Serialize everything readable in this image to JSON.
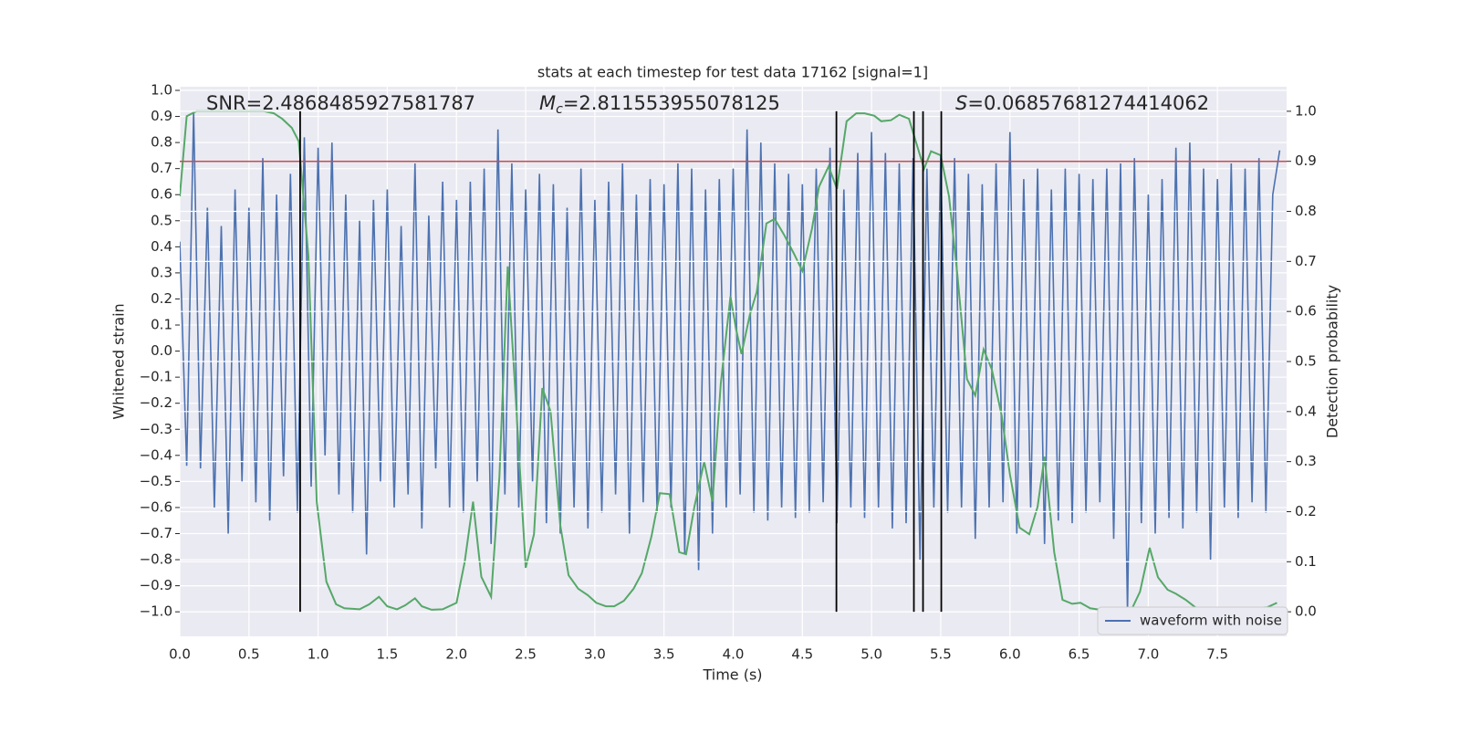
{
  "chart_data": {
    "type": "line",
    "title": "stats at each timestep for test data 17162 [signal=1]",
    "xlabel": "Time (s)",
    "ylabel": "Whitened strain",
    "y2label": "Detection probability",
    "annotations": [
      {
        "text": "SNR=2.4868485927581787"
      },
      {
        "symbol": "M",
        "subscript": "c",
        "text": "=2.811553955078125"
      },
      {
        "symbol": "S",
        "text": "=0.06857681274414062"
      }
    ],
    "xlim": [
      0,
      8
    ],
    "ylim": [
      -1.094,
      1.014
    ],
    "y2lim": [
      -0.049,
      1.049
    ],
    "xticks": [
      {
        "value": 0,
        "label": "0.0"
      },
      {
        "value": 0.5,
        "label": "0.5"
      },
      {
        "value": 1,
        "label": "1.0"
      },
      {
        "value": 1.5,
        "label": "1.5"
      },
      {
        "value": 2,
        "label": "2.0"
      },
      {
        "value": 2.5,
        "label": "2.5"
      },
      {
        "value": 3,
        "label": "3.0"
      },
      {
        "value": 3.5,
        "label": "3.5"
      },
      {
        "value": 4,
        "label": "4.0"
      },
      {
        "value": 4.5,
        "label": "4.5"
      },
      {
        "value": 5,
        "label": "5.0"
      },
      {
        "value": 5.5,
        "label": "5.5"
      },
      {
        "value": 6,
        "label": "6.0"
      },
      {
        "value": 6.5,
        "label": "6.5"
      },
      {
        "value": 7,
        "label": "7.0"
      },
      {
        "value": 7.5,
        "label": "7.5"
      }
    ],
    "yticks": [
      {
        "value": -1,
        "label": "−1.0"
      },
      {
        "value": -0.9,
        "label": "−0.9"
      },
      {
        "value": -0.8,
        "label": "−0.8"
      },
      {
        "value": -0.7,
        "label": "−0.7"
      },
      {
        "value": -0.6,
        "label": "−0.6"
      },
      {
        "value": -0.5,
        "label": "−0.5"
      },
      {
        "value": -0.4,
        "label": "−0.4"
      },
      {
        "value": -0.3,
        "label": "−0.3"
      },
      {
        "value": -0.2,
        "label": "−0.2"
      },
      {
        "value": -0.1,
        "label": "−0.1"
      },
      {
        "value": 0,
        "label": "0.0"
      },
      {
        "value": 0.1,
        "label": "0.1"
      },
      {
        "value": 0.2,
        "label": "0.2"
      },
      {
        "value": 0.3,
        "label": "0.3"
      },
      {
        "value": 0.4,
        "label": "0.4"
      },
      {
        "value": 0.5,
        "label": "0.5"
      },
      {
        "value": 0.6,
        "label": "0.6"
      },
      {
        "value": 0.7,
        "label": "0.7"
      },
      {
        "value": 0.8,
        "label": "0.8"
      },
      {
        "value": 0.9,
        "label": "0.9"
      },
      {
        "value": 1,
        "label": "1.0"
      }
    ],
    "y2ticks": [
      {
        "value": 0,
        "label": "0.0"
      },
      {
        "value": 0.1,
        "label": "0.1"
      },
      {
        "value": 0.2,
        "label": "0.2"
      },
      {
        "value": 0.3,
        "label": "0.3"
      },
      {
        "value": 0.4,
        "label": "0.4"
      },
      {
        "value": 0.5,
        "label": "0.5"
      },
      {
        "value": 0.6,
        "label": "0.6"
      },
      {
        "value": 0.7,
        "label": "0.7"
      },
      {
        "value": 0.8,
        "label": "0.8"
      },
      {
        "value": 0.9,
        "label": "0.9"
      },
      {
        "value": 1,
        "label": "1.0"
      }
    ],
    "grid": true,
    "legend": "lower right",
    "threshold": {
      "value": 0.9,
      "axis": "y2",
      "color": "#c44e52"
    },
    "vlines": {
      "x": [
        0.87,
        4.746,
        5.306,
        5.372,
        5.504
      ],
      "range": [
        0,
        1
      ],
      "axis": "y2",
      "color": "#000000"
    },
    "series": [
      {
        "name": "waveform with noise",
        "color": "#4c72b0",
        "x": [
          0,
          0.05,
          0.1,
          0.15,
          0.2,
          0.25,
          0.3,
          0.35,
          0.4,
          0.45,
          0.5,
          0.55,
          0.6,
          0.65,
          0.7,
          0.75,
          0.8,
          0.85,
          0.9,
          0.95,
          1,
          1.05,
          1.1,
          1.15,
          1.2,
          1.25,
          1.3,
          1.35,
          1.4,
          1.45,
          1.5,
          1.55,
          1.6,
          1.65,
          1.7,
          1.75,
          1.8,
          1.85,
          1.9,
          1.95,
          2,
          2.05,
          2.1,
          2.15,
          2.2,
          2.25,
          2.3,
          2.35,
          2.4,
          2.45,
          2.5,
          2.55,
          2.6,
          2.65,
          2.7,
          2.75,
          2.8,
          2.85,
          2.9,
          2.95,
          3,
          3.05,
          3.1,
          3.15,
          3.2,
          3.25,
          3.3,
          3.35,
          3.4,
          3.45,
          3.5,
          3.55,
          3.6,
          3.65,
          3.7,
          3.75,
          3.8,
          3.85,
          3.9,
          3.95,
          4,
          4.05,
          4.1,
          4.15,
          4.2,
          4.25,
          4.3,
          4.35,
          4.4,
          4.45,
          4.5,
          4.55,
          4.6,
          4.65,
          4.7,
          4.75,
          4.8,
          4.85,
          4.9,
          4.95,
          5,
          5.05,
          5.1,
          5.15,
          5.2,
          5.25,
          5.3,
          5.35,
          5.4,
          5.45,
          5.5,
          5.55,
          5.6,
          5.65,
          5.7,
          5.75,
          5.8,
          5.85,
          5.9,
          5.95,
          6,
          6.05,
          6.1,
          6.15,
          6.2,
          6.25,
          6.3,
          6.35,
          6.4,
          6.45,
          6.5,
          6.55,
          6.6,
          6.65,
          6.7,
          6.75,
          6.8,
          6.85,
          6.9,
          6.95,
          7,
          7.05,
          7.1,
          7.15,
          7.2,
          7.25,
          7.3,
          7.35,
          7.4,
          7.45,
          7.5,
          7.55,
          7.6,
          7.65,
          7.7,
          7.75,
          7.8,
          7.85,
          7.9,
          7.95
        ],
        "values": [
          0.42,
          -0.44,
          0.92,
          -0.45,
          0.55,
          -0.6,
          0.48,
          -0.7,
          0.62,
          -0.5,
          0.55,
          -0.58,
          0.74,
          -0.65,
          0.6,
          -0.48,
          0.68,
          -0.62,
          0.82,
          -0.52,
          0.78,
          -0.4,
          0.8,
          -0.55,
          0.6,
          -0.62,
          0.5,
          -0.78,
          0.58,
          -0.5,
          0.62,
          -0.6,
          0.48,
          -0.55,
          0.72,
          -0.68,
          0.52,
          -0.45,
          0.65,
          -0.6,
          0.58,
          -0.62,
          0.65,
          -0.5,
          0.7,
          -0.74,
          0.85,
          -0.55,
          0.72,
          -0.6,
          0.62,
          -0.5,
          0.68,
          -0.66,
          0.64,
          -0.7,
          0.55,
          -0.6,
          0.7,
          -0.68,
          0.58,
          -0.62,
          0.65,
          -0.55,
          0.72,
          -0.7,
          0.6,
          -0.58,
          0.66,
          -0.62,
          0.64,
          -0.6,
          0.72,
          -0.78,
          0.7,
          -0.84,
          0.62,
          -0.7,
          0.66,
          -0.6,
          0.7,
          -0.55,
          0.85,
          -0.62,
          0.8,
          -0.65,
          0.72,
          -0.6,
          0.68,
          -0.64,
          0.64,
          -0.62,
          0.7,
          -0.58,
          0.78,
          -0.66,
          0.62,
          -0.6,
          0.76,
          -0.64,
          0.84,
          -0.6,
          0.76,
          -0.68,
          0.72,
          -0.66,
          0.74,
          -0.8,
          0.7,
          -0.6,
          0.75,
          -0.62,
          0.74,
          -0.6,
          0.68,
          -0.72,
          0.64,
          -0.6,
          0.72,
          -0.58,
          0.84,
          -0.7,
          0.66,
          -0.6,
          0.7,
          -0.74,
          0.62,
          -0.65,
          0.7,
          -0.66,
          0.68,
          -0.62,
          0.66,
          -0.58,
          0.7,
          -0.72,
          0.72,
          -1.0,
          0.74,
          -0.66,
          0.6,
          -0.7,
          0.66,
          -0.64,
          0.78,
          -0.68,
          0.8,
          -0.62,
          0.7,
          -0.8,
          0.66,
          -0.6,
          0.72,
          -0.64,
          0.7,
          -0.58,
          0.74,
          -0.62,
          0.6,
          0.77
        ]
      },
      {
        "color": "#55a868",
        "axis": "y2",
        "x": [
          0,
          0.05,
          0.12,
          0.61,
          0.68,
          0.74,
          0.81,
          0.86,
          0.93,
          0.99,
          1.06,
          1.13,
          1.19,
          1.3,
          1.37,
          1.44,
          1.5,
          1.57,
          1.63,
          1.7,
          1.75,
          1.82,
          1.9,
          2.0,
          2.06,
          2.12,
          2.18,
          2.25,
          2.31,
          2.37,
          2.43,
          2.5,
          2.56,
          2.62,
          2.68,
          2.75,
          2.81,
          2.88,
          2.95,
          3.01,
          3.08,
          3.14,
          3.21,
          3.28,
          3.34,
          3.41,
          3.47,
          3.54,
          3.61,
          3.66,
          3.72,
          3.79,
          3.85,
          3.91,
          3.98,
          4.02,
          4.06,
          4.12,
          4.17,
          4.24,
          4.3,
          4.37,
          4.44,
          4.5,
          4.57,
          4.62,
          4.69,
          4.75,
          4.82,
          4.89,
          4.95,
          5.02,
          5.07,
          5.14,
          5.2,
          5.27,
          5.32,
          5.38,
          5.43,
          5.5,
          5.56,
          5.62,
          5.69,
          5.75,
          5.81,
          5.87,
          5.94,
          6.0,
          6.07,
          6.14,
          6.2,
          6.25,
          6.32,
          6.38,
          6.45,
          6.51,
          6.58,
          6.65,
          6.78,
          6.88,
          6.94,
          7.01,
          7.07,
          7.14,
          7.2,
          7.27,
          7.34,
          7.4,
          7.53,
          7.63,
          7.73,
          7.86,
          7.93
        ],
        "values": [
          0.83,
          0.99,
          1.0,
          1.0,
          0.996,
          0.985,
          0.967,
          0.94,
          0.71,
          0.22,
          0.06,
          0.015,
          0.007,
          0.005,
          0.015,
          0.03,
          0.011,
          0.005,
          0.013,
          0.027,
          0.011,
          0.004,
          0.005,
          0.018,
          0.1,
          0.22,
          0.07,
          0.03,
          0.27,
          0.69,
          0.42,
          0.088,
          0.155,
          0.447,
          0.4,
          0.173,
          0.073,
          0.046,
          0.033,
          0.018,
          0.011,
          0.011,
          0.022,
          0.046,
          0.077,
          0.151,
          0.237,
          0.235,
          0.119,
          0.115,
          0.21,
          0.3,
          0.22,
          0.456,
          0.63,
          0.566,
          0.515,
          0.593,
          0.639,
          0.776,
          0.785,
          0.752,
          0.715,
          0.681,
          0.766,
          0.849,
          0.89,
          0.845,
          0.98,
          0.996,
          0.996,
          0.991,
          0.98,
          0.982,
          0.993,
          0.985,
          0.94,
          0.885,
          0.92,
          0.912,
          0.83,
          0.675,
          0.465,
          0.432,
          0.524,
          0.484,
          0.392,
          0.274,
          0.168,
          0.155,
          0.21,
          0.31,
          0.119,
          0.024,
          0.016,
          0.018,
          0.007,
          0.004,
          0.004,
          0.005,
          0.04,
          0.128,
          0.069,
          0.044,
          0.036,
          0.024,
          0.009,
          0.004,
          0.002,
          0.004,
          0.007,
          0.009,
          0.018
        ]
      }
    ]
  }
}
